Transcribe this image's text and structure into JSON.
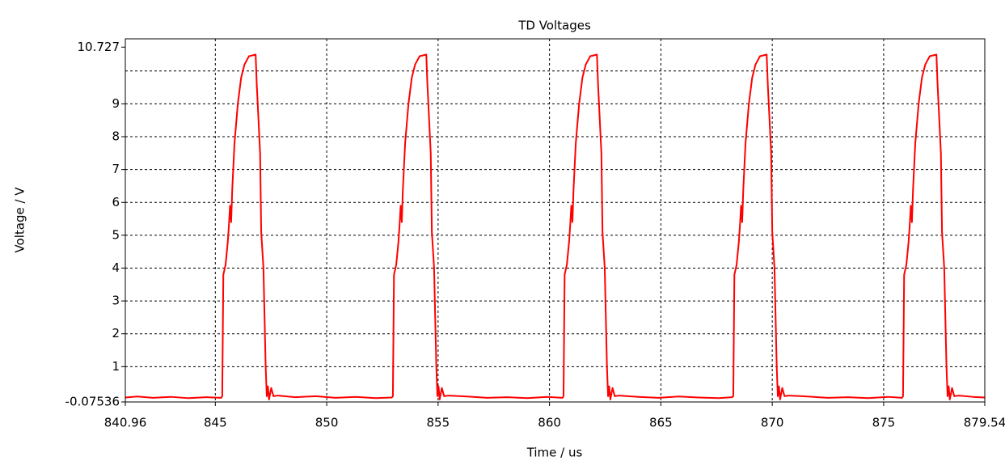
{
  "chart_data": {
    "type": "line",
    "title": "TD Voltages",
    "x_label": "Time / us",
    "y_label": "Voltage / V",
    "xlim": [
      840.96,
      879.54
    ],
    "ylim": [
      -0.07536,
      10.98
    ],
    "xticks": [
      840.96,
      845,
      850,
      855,
      860,
      865,
      870,
      875,
      879.54
    ],
    "yticks": [
      -0.07536,
      1,
      2,
      3,
      4,
      5,
      6,
      7,
      8,
      9,
      10.727
    ],
    "xgrid": [
      845,
      850,
      855,
      860,
      865,
      870,
      875
    ],
    "ygrid": [
      1,
      2,
      3,
      4,
      5,
      6,
      7,
      8,
      9,
      10
    ],
    "grid": true,
    "x": [
      840.96,
      841.5,
      842.2,
      843.0,
      843.8,
      844.6,
      845.26,
      845.31,
      845.36,
      845.46,
      845.56,
      845.61,
      845.66,
      845.71,
      845.76,
      845.86,
      846.01,
      846.16,
      846.31,
      846.51,
      846.81,
      846.86,
      847.01,
      847.06,
      847.16,
      847.26,
      847.31,
      847.36,
      847.41,
      847.51,
      847.61,
      847.81,
      848.6,
      849.5,
      850.4,
      851.3,
      852.2,
      852.92,
      852.97,
      853.02,
      853.12,
      853.22,
      853.27,
      853.32,
      853.37,
      853.42,
      853.52,
      853.67,
      853.82,
      853.97,
      854.17,
      854.47,
      854.52,
      854.67,
      854.72,
      854.82,
      854.92,
      854.97,
      855.02,
      855.07,
      855.17,
      855.27,
      855.47,
      856.3,
      857.2,
      858.1,
      859.0,
      859.9,
      860.58,
      860.63,
      860.68,
      860.78,
      860.88,
      860.93,
      860.98,
      861.03,
      861.08,
      861.18,
      861.33,
      861.48,
      861.63,
      861.83,
      862.13,
      862.18,
      862.33,
      862.38,
      862.48,
      862.58,
      862.63,
      862.68,
      862.73,
      862.83,
      862.93,
      863.13,
      864.0,
      864.9,
      865.8,
      866.7,
      867.6,
      868.2,
      868.25,
      868.3,
      868.4,
      868.5,
      868.55,
      868.6,
      868.65,
      868.7,
      868.8,
      868.95,
      869.1,
      869.25,
      869.45,
      869.75,
      869.8,
      869.95,
      870.0,
      870.1,
      870.2,
      870.25,
      870.3,
      870.35,
      870.45,
      870.55,
      870.75,
      871.6,
      872.5,
      873.4,
      874.3,
      875.2,
      875.82,
      875.87,
      875.92,
      876.02,
      876.12,
      876.17,
      876.22,
      876.27,
      876.32,
      876.42,
      876.57,
      876.72,
      876.87,
      877.07,
      877.37,
      877.42,
      877.57,
      877.62,
      877.72,
      877.82,
      877.87,
      877.92,
      877.97,
      878.07,
      878.17,
      878.37,
      879.0,
      879.54
    ],
    "series": [
      {
        "color": "#ff0000",
        "values": [
          0.06,
          0.09,
          0.05,
          0.08,
          0.04,
          0.07,
          0.05,
          0.1,
          3.8,
          4.1,
          4.8,
          5.3,
          5.9,
          5.4,
          6.4,
          7.8,
          9.0,
          9.8,
          10.2,
          10.45,
          10.5,
          9.6,
          7.5,
          5.1,
          4.0,
          1.0,
          0.1,
          0.4,
          0.0,
          0.35,
          0.1,
          0.12,
          0.07,
          0.1,
          0.05,
          0.08,
          0.04,
          0.06,
          0.1,
          3.8,
          4.1,
          4.8,
          5.3,
          5.9,
          5.4,
          6.4,
          7.8,
          9.0,
          9.8,
          10.2,
          10.45,
          10.5,
          9.6,
          7.5,
          5.1,
          4.0,
          1.0,
          0.1,
          0.4,
          0.0,
          0.35,
          0.1,
          0.12,
          0.09,
          0.05,
          0.07,
          0.04,
          0.08,
          0.05,
          0.1,
          3.8,
          4.1,
          4.8,
          5.3,
          5.9,
          5.4,
          6.4,
          7.8,
          9.0,
          9.8,
          10.2,
          10.45,
          10.5,
          9.6,
          7.5,
          5.1,
          4.0,
          1.0,
          0.1,
          0.4,
          0.0,
          0.35,
          0.1,
          0.12,
          0.08,
          0.05,
          0.09,
          0.06,
          0.04,
          0.07,
          0.1,
          3.8,
          4.1,
          4.8,
          5.3,
          5.9,
          5.4,
          6.4,
          7.8,
          9.0,
          9.8,
          10.2,
          10.45,
          10.5,
          9.6,
          7.5,
          5.1,
          4.0,
          1.0,
          0.1,
          0.4,
          0.0,
          0.35,
          0.1,
          0.12,
          0.09,
          0.05,
          0.07,
          0.04,
          0.08,
          0.05,
          0.1,
          3.8,
          4.1,
          4.8,
          5.3,
          5.9,
          5.4,
          6.4,
          7.8,
          9.0,
          9.8,
          10.2,
          10.45,
          10.5,
          9.6,
          7.5,
          5.1,
          4.0,
          1.0,
          0.1,
          0.4,
          0.0,
          0.35,
          0.1,
          0.12,
          0.08,
          0.06
        ]
      }
    ]
  }
}
